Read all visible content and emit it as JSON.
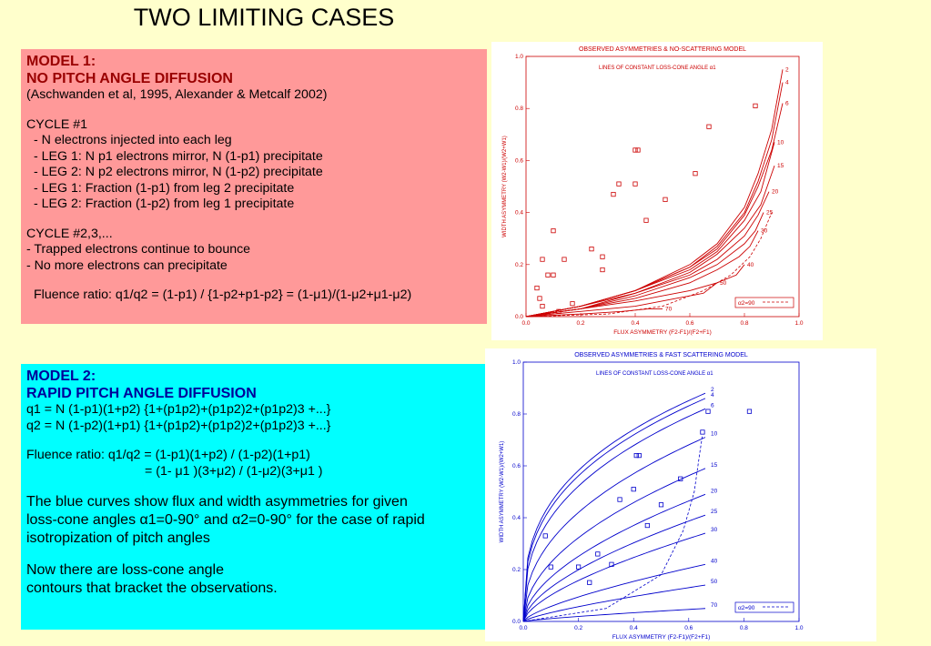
{
  "title": "TWO LIMITING CASES",
  "model1": {
    "heading1": "MODEL 1:",
    "heading2": "NO PITCH ANGLE  DIFFUSION",
    "citation": "(Aschwanden et al, 1995, Alexander & Metcalf 2002)",
    "cycle1": "CYCLE #1",
    "l1": "- N electrons injected into each leg",
    "l2": "- LEG 1: N p1 electrons mirror, N (1-p1) precipitate",
    "l3": "- LEG 2: N p2 electrons mirror, N (1-p2) precipitate",
    "l4": "- LEG 1: Fraction (1-p1) from leg 2 precipitate",
    "l5": "- LEG 2: Fraction (1-p2) from leg 1 precipitate",
    "cycle2": "CYCLE #2,3,...",
    "l6": "- Trapped electrons continue to bounce",
    "l7": "- No more electrons can precipitate",
    "fluence": "Fluence ratio: q1/q2 = (1-p1) / {1-p2+p1-p2}  = (1-μ1)/(1-μ2+μ1-μ2)"
  },
  "model2": {
    "heading1": "MODEL 2:",
    "heading2": "RAPID PITCH ANGLE DIFFUSION",
    "q1": "q1 = N (1-p1)(1+p2) {1+(p1p2)+(p1p2)2+(p1p2)3 +...}",
    "q2": "q2 = N (1-p2)(1+p1) {1+(p1p2)+(p1p2)2+(p1p2)3 +...}",
    "fluence1": "Fluence ratio: q1/q2 = (1-p1)(1+p2) / (1-p2)(1+p1)",
    "fluence2": "= (1- μ1 )(3+μ2) / (1-μ2)(3+μ1 )",
    "desc1": "The blue curves show flux and width asymmetries for given",
    "desc2": "loss-cone angles α1=0-90° and α2=0-90° for the case of rapid",
    "desc3": "isotropization of pitch angles",
    "now1": "Now there are loss-cone angle",
    "now2": "contours that bracket the observations."
  },
  "chart_data": [
    {
      "type": "line",
      "color": "#cc0000",
      "title": "OBSERVED ASYMMETRIES & NO-SCATTERING MODEL",
      "subtitle": "LINES OF CONSTANT LOSS-CONE ANGLE α1",
      "xlabel": "FLUX ASYMMETRY (F2-F1)/(F2+F1)",
      "ylabel": "WIDTH ASYMMETRY (W2-W1)/(W2+W1)",
      "xlim": [
        0,
        1
      ],
      "ylim": [
        0,
        1
      ],
      "xticks": [
        "0.0",
        "0.2",
        "0.4",
        "0.6",
        "0.8",
        "1.0"
      ],
      "yticks": [
        "0.0",
        "0.2",
        "0.4",
        "0.6",
        "0.8",
        "1.0"
      ],
      "series": [
        {
          "name": "2",
          "x": [
            0,
            0.2,
            0.4,
            0.6,
            0.7,
            0.8,
            0.85,
            0.9,
            0.94
          ],
          "y": [
            0,
            0.04,
            0.1,
            0.2,
            0.28,
            0.42,
            0.55,
            0.72,
            0.95
          ]
        },
        {
          "name": "4",
          "x": [
            0,
            0.2,
            0.4,
            0.6,
            0.7,
            0.8,
            0.85,
            0.9,
            0.94
          ],
          "y": [
            0,
            0.04,
            0.1,
            0.19,
            0.27,
            0.4,
            0.52,
            0.68,
            0.9
          ]
        },
        {
          "name": "6",
          "x": [
            0,
            0.2,
            0.4,
            0.6,
            0.7,
            0.8,
            0.85,
            0.9,
            0.94
          ],
          "y": [
            0,
            0.04,
            0.1,
            0.19,
            0.26,
            0.39,
            0.5,
            0.64,
            0.82
          ]
        },
        {
          "name": "10",
          "x": [
            0,
            0.2,
            0.4,
            0.6,
            0.7,
            0.8,
            0.86,
            0.91
          ],
          "y": [
            0,
            0.04,
            0.1,
            0.18,
            0.25,
            0.37,
            0.48,
            0.67
          ]
        },
        {
          "name": "15",
          "x": [
            0,
            0.2,
            0.4,
            0.6,
            0.7,
            0.8,
            0.86,
            0.91
          ],
          "y": [
            0,
            0.04,
            0.09,
            0.17,
            0.24,
            0.34,
            0.43,
            0.58
          ]
        },
        {
          "name": "20",
          "x": [
            0,
            0.2,
            0.4,
            0.6,
            0.7,
            0.8,
            0.85,
            0.89
          ],
          "y": [
            0,
            0.03,
            0.09,
            0.16,
            0.22,
            0.31,
            0.39,
            0.48
          ]
        },
        {
          "name": "25",
          "x": [
            0,
            0.2,
            0.4,
            0.6,
            0.7,
            0.8,
            0.84,
            0.87
          ],
          "y": [
            0,
            0.03,
            0.08,
            0.15,
            0.2,
            0.28,
            0.33,
            0.4
          ]
        },
        {
          "name": "30",
          "x": [
            0,
            0.2,
            0.4,
            0.6,
            0.7,
            0.78,
            0.82,
            0.85
          ],
          "y": [
            0,
            0.03,
            0.07,
            0.13,
            0.18,
            0.23,
            0.27,
            0.33
          ]
        },
        {
          "name": "40",
          "x": [
            0,
            0.2,
            0.4,
            0.6,
            0.7,
            0.77,
            0.8
          ],
          "y": [
            0,
            0.03,
            0.06,
            0.1,
            0.13,
            0.16,
            0.2
          ]
        },
        {
          "name": "50",
          "x": [
            0,
            0.2,
            0.4,
            0.55,
            0.65,
            0.7
          ],
          "y": [
            0,
            0.02,
            0.04,
            0.07,
            0.09,
            0.13
          ]
        },
        {
          "name": "70",
          "x": [
            0,
            0.2,
            0.35,
            0.45,
            0.5
          ],
          "y": [
            0,
            0.01,
            0.02,
            0.03,
            0.03
          ]
        }
      ],
      "dashed": {
        "name": "α2=90",
        "x": [
          0,
          0.3,
          0.5,
          0.65,
          0.75,
          0.82,
          0.86,
          0.9
        ],
        "y": [
          0,
          0.01,
          0.04,
          0.1,
          0.16,
          0.23,
          0.3,
          0.4
        ]
      },
      "scatter": {
        "x": [
          0.1,
          0.14,
          0.06,
          0.08,
          0.1,
          0.04,
          0.05,
          0.06,
          0.12,
          0.17,
          0.24,
          0.28,
          0.28,
          0.32,
          0.34,
          0.4,
          0.41,
          0.4,
          0.44,
          0.51,
          0.62,
          0.67,
          0.84
        ],
        "y": [
          0.33,
          0.22,
          0.22,
          0.16,
          0.16,
          0.11,
          0.07,
          0.04,
          0.02,
          0.05,
          0.26,
          0.23,
          0.18,
          0.47,
          0.51,
          0.64,
          0.64,
          0.51,
          0.37,
          0.45,
          0.55,
          0.73,
          0.81
        ]
      }
    },
    {
      "type": "line",
      "color": "#0000cc",
      "title": "OBSERVED ASYMMETRIES & FAST SCATTERING MODEL",
      "subtitle": "LINES OF CONSTANT LOSS-CONE ANGLE α1",
      "xlabel": "FLUX ASYMMETRY (F2-F1)/(F2+F1)",
      "ylabel": "WIDTH ASYMMETRY (W2-W1)/(W2+W1)",
      "xlim": [
        0,
        1
      ],
      "ylim": [
        0,
        1
      ],
      "xticks": [
        "0.0",
        "0.2",
        "0.4",
        "0.6",
        "0.8",
        "1.0"
      ],
      "yticks": [
        "0.0",
        "0.2",
        "0.4",
        "0.6",
        "0.8",
        "1.0"
      ],
      "series": [
        {
          "name": "2",
          "y_end": 0.88
        },
        {
          "name": "4",
          "y_end": 0.86
        },
        {
          "name": "6",
          "y_end": 0.82
        },
        {
          "name": "10",
          "y_end": 0.71
        },
        {
          "name": "15",
          "y_end": 0.59
        },
        {
          "name": "20",
          "y_end": 0.49
        },
        {
          "name": "25",
          "y_end": 0.41
        },
        {
          "name": "30",
          "y_end": 0.34
        },
        {
          "name": "40",
          "y_end": 0.22
        },
        {
          "name": "50",
          "y_end": 0.14
        },
        {
          "name": "70",
          "y_end": 0.05
        }
      ],
      "dashed": {
        "name": "α2=90",
        "x": [
          0,
          0.3,
          0.5,
          0.58,
          0.62,
          0.64,
          0.65
        ],
        "y": [
          0,
          0.05,
          0.18,
          0.35,
          0.5,
          0.65,
          0.72
        ]
      },
      "scatter": {
        "x": [
          0.08,
          0.1,
          0.2,
          0.24,
          0.27,
          0.32,
          0.35,
          0.4,
          0.41,
          0.42,
          0.45,
          0.5,
          0.57,
          0.65,
          0.67,
          0.82
        ],
        "y": [
          0.33,
          0.21,
          0.21,
          0.15,
          0.26,
          0.22,
          0.47,
          0.51,
          0.64,
          0.64,
          0.37,
          0.45,
          0.55,
          0.73,
          0.81,
          0.81
        ]
      }
    }
  ]
}
